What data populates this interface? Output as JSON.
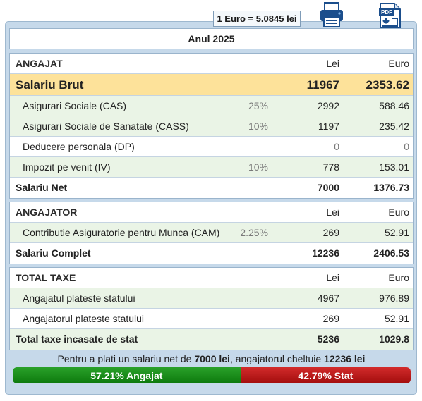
{
  "exchange": {
    "label": "1 Euro = 5.0845 lei"
  },
  "toolbar": {
    "print_icon": "printer-icon",
    "pdf_icon": "pdf-download-icon",
    "pdf_label": "PDF"
  },
  "year": {
    "label": "Anul 2025"
  },
  "employee": {
    "title": "ANGAJAT",
    "col_lei": "Lei",
    "col_eur": "Euro",
    "gross": {
      "label": "Salariu Brut",
      "lei": "11967",
      "eur": "2353.62"
    },
    "rows": [
      {
        "label": "Asigurari Sociale (CAS)",
        "pct": "25%",
        "lei": "2992",
        "eur": "588.46"
      },
      {
        "label": "Asigurari Sociale de Sanatate (CASS)",
        "pct": "10%",
        "lei": "1197",
        "eur": "235.42"
      },
      {
        "label": "Deducere personala (DP)",
        "pct": "",
        "lei": "0",
        "eur": "0"
      },
      {
        "label": "Impozit pe venit (IV)",
        "pct": "10%",
        "lei": "778",
        "eur": "153.01"
      }
    ],
    "net": {
      "label": "Salariu Net",
      "lei": "7000",
      "eur": "1376.73"
    }
  },
  "employer": {
    "title": "ANGAJATOR",
    "col_lei": "Lei",
    "col_eur": "Euro",
    "rows": [
      {
        "label": "Contributie Asiguratorie pentru Munca (CAM)",
        "pct": "2.25%",
        "lei": "269",
        "eur": "52.91"
      }
    ],
    "complete": {
      "label": "Salariu Complet",
      "lei": "12236",
      "eur": "2406.53"
    }
  },
  "taxes": {
    "title": "TOTAL TAXE",
    "col_lei": "Lei",
    "col_eur": "Euro",
    "rows": [
      {
        "label": "Angajatul plateste statului",
        "lei": "4967",
        "eur": "976.89"
      },
      {
        "label": "Angajatorul plateste statului",
        "lei": "269",
        "eur": "52.91"
      }
    ],
    "total": {
      "label": "Total taxe incasate de stat",
      "lei": "5236",
      "eur": "1029.8"
    }
  },
  "summary": {
    "prefix": "Pentru a plati un salariu net de ",
    "net": "7000 lei",
    "middle": ", angajatorul cheltuie ",
    "cost": "12236 lei"
  },
  "split": {
    "employee_label": "57.21% Angajat",
    "employee_pct": 57.21,
    "state_label": "42.79% Stat",
    "state_pct": 42.79,
    "employee_color": "#1a8c1a",
    "state_color": "#c01c1c"
  }
}
